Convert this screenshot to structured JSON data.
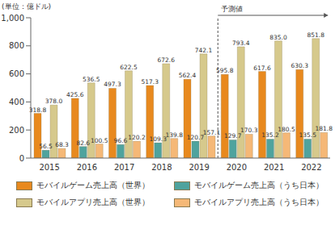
{
  "chart_data": {
    "type": "bar",
    "y_label": "(単位：億ドル)",
    "categories": [
      "2015",
      "2016",
      "2017",
      "2018",
      "2019",
      "2020",
      "2021",
      "2022"
    ],
    "series": [
      {
        "name": "モバイルゲーム売上高（世界）",
        "color": "#e8891e",
        "values": [
          318.8,
          425.6,
          497.3,
          517.3,
          562.4,
          595.8,
          617.6,
          630.3
        ],
        "value_labels": [
          "318.8",
          "425.6",
          "497.3",
          "517.3",
          "562.4",
          "595.8",
          "617.6",
          "630.3"
        ]
      },
      {
        "name": "モバイルゲーム売上高（うち日本）",
        "color": "#4fa39e",
        "values": [
          56.5,
          82.6,
          96.6,
          109.3,
          120.7,
          129.7,
          135.2,
          135.5
        ],
        "value_labels": [
          "56.5",
          "82.6",
          "96.6",
          "109.3",
          "120.7",
          "129.7",
          "135.2",
          "135.5"
        ]
      },
      {
        "name": "モバイルアプリ売上高（世界）",
        "color": "#d6c98c",
        "values": [
          378.0,
          536.5,
          622.5,
          672.6,
          742.1,
          793.4,
          835.0,
          851.8
        ],
        "value_labels": [
          "378.0",
          "536.5",
          "622.5",
          "672.6",
          "742.1",
          "793.4",
          "835.0",
          "851.8"
        ]
      },
      {
        "name": "モバイルアプリ売上高（うち日本）",
        "color": "#f5b877",
        "values": [
          68.3,
          100.5,
          120.2,
          139.8,
          157.1,
          170.3,
          180.5,
          181.8
        ],
        "value_labels": [
          "68.3",
          "100.5",
          "120.2",
          "139.8",
          "157.1",
          "170.3",
          "180.5",
          "181.8"
        ]
      }
    ],
    "ylim": [
      0,
      1000
    ],
    "yticks": [
      0,
      200,
      400,
      600,
      800,
      {
        "value": 1000,
        "label": "1,000"
      }
    ],
    "grid": false,
    "data_labels": true,
    "legend": "bottom",
    "annotations": [
      {
        "text": "予測値",
        "x": "2020"
      }
    ]
  }
}
